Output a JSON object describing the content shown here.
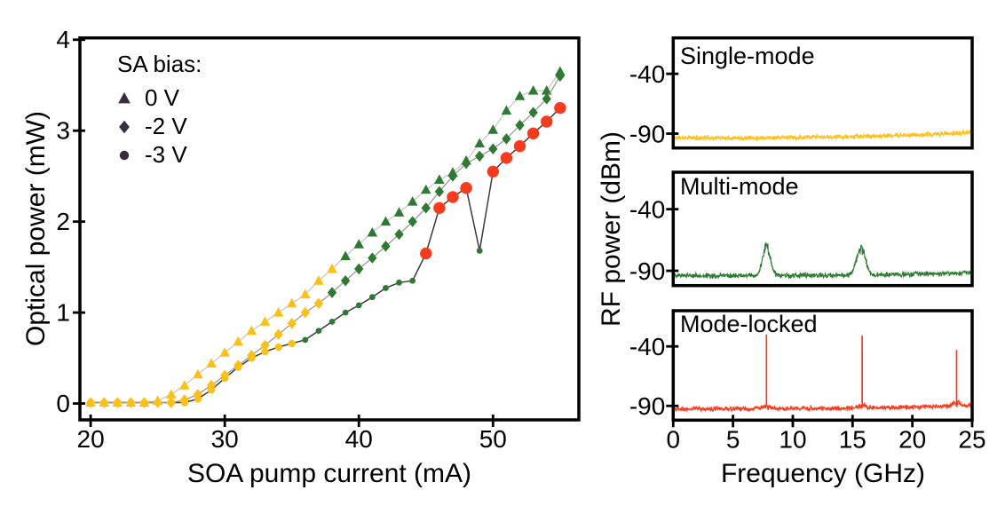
{
  "palette": {
    "single_mode_yellow": "#fdc013",
    "multi_mode_green": "#2e7a33",
    "mode_locked_red": "#fa3a1c",
    "legend_marker": "#3a2e3e",
    "axis_black": "#000000",
    "series_line_colors": [
      "#c8c8c8",
      "#9a9a9a",
      "#3a3a3a"
    ],
    "mode_palette": {
      "s": "#fdc013",
      "m": "#2e7a33",
      "l": "#fa3a1c"
    }
  },
  "regimes": {
    "s": "single-mode",
    "m": "multi-mode",
    "l": "mode-locked"
  },
  "chart_data": [
    {
      "type": "scatter",
      "xlabel": "SOA pump current (mA)",
      "ylabel": "Optical power (mW)",
      "x_ticks": [
        20,
        30,
        40,
        50
      ],
      "y_ticks": [
        0,
        1,
        2,
        3,
        4
      ],
      "xlim": [
        19.2,
        56.4
      ],
      "ylim": [
        -0.18,
        4.02
      ],
      "legend": {
        "title": "SA bias:",
        "items": [
          {
            "marker": "triangle",
            "label": "0 V"
          },
          {
            "marker": "diamond",
            "label": "-2 V"
          },
          {
            "marker": "circle",
            "label": "-3 V"
          }
        ]
      },
      "x": [
        20,
        21,
        22,
        23,
        24,
        25,
        26,
        27,
        28,
        29,
        30,
        31,
        32,
        33,
        34,
        35,
        36,
        37,
        38,
        39,
        40,
        41,
        42,
        43,
        44,
        45,
        46,
        47,
        48,
        49,
        50,
        51,
        52,
        53,
        54,
        55
      ],
      "series": [
        {
          "name": "0 V",
          "marker": "triangle",
          "values": [
            0.01,
            0.01,
            0.01,
            0.01,
            0.01,
            0.03,
            0.1,
            0.2,
            0.32,
            0.44,
            0.56,
            0.68,
            0.8,
            0.9,
            1.0,
            1.1,
            1.2,
            1.35,
            1.48,
            1.62,
            1.75,
            1.88,
            2.0,
            2.1,
            2.22,
            2.35,
            2.46,
            2.54,
            2.67,
            2.86,
            3.01,
            3.22,
            3.38,
            3.44,
            3.44,
            3.65
          ],
          "modes": [
            "s",
            "s",
            "s",
            "s",
            "s",
            "s",
            "s",
            "s",
            "s",
            "s",
            "s",
            "s",
            "s",
            "s",
            "s",
            "s",
            "s",
            "s",
            "s",
            "m",
            "m",
            "m",
            "m",
            "m",
            "m",
            "m",
            "m",
            "m",
            "m",
            "m",
            "m",
            "m",
            "m",
            "m",
            "m",
            "m"
          ]
        },
        {
          "name": "-2 V",
          "marker": "diamond",
          "values": [
            0.01,
            0.01,
            0.01,
            0.01,
            0.01,
            0.01,
            0.01,
            0.04,
            0.1,
            0.2,
            0.31,
            0.42,
            0.53,
            0.64,
            0.76,
            0.88,
            1.0,
            1.1,
            1.22,
            1.35,
            1.48,
            1.6,
            1.73,
            1.86,
            2.0,
            2.15,
            2.33,
            2.5,
            2.64,
            2.72,
            2.8,
            2.91,
            3.06,
            3.2,
            3.35,
            3.6
          ],
          "modes": [
            "s",
            "s",
            "s",
            "s",
            "s",
            "s",
            "s",
            "s",
            "s",
            "s",
            "s",
            "s",
            "s",
            "s",
            "s",
            "s",
            "s",
            "s",
            "m",
            "m",
            "m",
            "m",
            "m",
            "m",
            "m",
            "m",
            "m",
            "m",
            "m",
            "m",
            "m",
            "m",
            "m",
            "m",
            "m",
            "m"
          ]
        },
        {
          "name": "-3 V",
          "marker": "circle",
          "values": [
            0.01,
            0.01,
            0.01,
            0.01,
            0.01,
            0.01,
            0.01,
            0.01,
            0.05,
            0.15,
            0.28,
            0.4,
            0.5,
            0.57,
            0.62,
            0.66,
            0.7,
            0.8,
            0.9,
            1.0,
            1.08,
            1.17,
            1.27,
            1.33,
            1.35,
            1.65,
            2.15,
            2.27,
            2.37,
            1.68,
            2.55,
            2.7,
            2.83,
            2.97,
            3.1,
            3.25
          ],
          "modes": [
            "s",
            "s",
            "s",
            "s",
            "s",
            "s",
            "s",
            "s",
            "s",
            "s",
            "s",
            "s",
            "s",
            "s",
            "s",
            "s",
            "m",
            "m",
            "m",
            "m",
            "m",
            "m",
            "m",
            "m",
            "m",
            "l",
            "l",
            "l",
            "l",
            "m",
            "l",
            "l",
            "l",
            "l",
            "l",
            "l"
          ]
        }
      ]
    },
    {
      "type": "line",
      "label": "Single-mode",
      "xlabel": "Frequency (GHz)",
      "ylabel": "RF power (dBm)",
      "x_ticks": [
        0,
        5,
        10,
        15,
        20,
        25
      ],
      "y_ticks": [
        -40,
        -90
      ],
      "xlim": [
        0,
        25
      ],
      "ylim": [
        -102,
        -10
      ],
      "noise_floor_dbm": -93.5,
      "noise_amp_db": 2.4,
      "rise_db": 4.5,
      "peaks": []
    },
    {
      "type": "line",
      "label": "Multi-mode",
      "xlabel": "Frequency (GHz)",
      "ylabel": "RF power (dBm)",
      "x_ticks": [
        0,
        5,
        10,
        15,
        20,
        25
      ],
      "y_ticks": [
        -40,
        -90
      ],
      "xlim": [
        0,
        25
      ],
      "ylim": [
        -102,
        -10
      ],
      "noise_floor_dbm": -94,
      "noise_amp_db": 2.6,
      "rise_db": 2.5,
      "peaks": [
        {
          "f_ghz": 7.8,
          "peak_dbm": -67,
          "fwhm_ghz": 0.75,
          "shape": "broad"
        },
        {
          "f_ghz": 15.7,
          "peak_dbm": -69,
          "fwhm_ghz": 0.85,
          "shape": "broad"
        }
      ]
    },
    {
      "type": "line",
      "label": "Mode-locked",
      "xlabel": "Frequency (GHz)",
      "ylabel": "RF power (dBm)",
      "x_ticks": [
        0,
        5,
        10,
        15,
        20,
        25
      ],
      "y_ticks": [
        -40,
        -90
      ],
      "xlim": [
        0,
        25
      ],
      "ylim": [
        -102,
        -10
      ],
      "noise_floor_dbm": -92.5,
      "noise_amp_db": 2.4,
      "rise_db": 3.0,
      "peaks": [
        {
          "f_ghz": 7.8,
          "peak_dbm": -30,
          "shape": "spike"
        },
        {
          "f_ghz": 15.8,
          "peak_dbm": -31,
          "shape": "spike"
        },
        {
          "f_ghz": 23.7,
          "peak_dbm": -43,
          "shape": "spike"
        }
      ]
    }
  ]
}
